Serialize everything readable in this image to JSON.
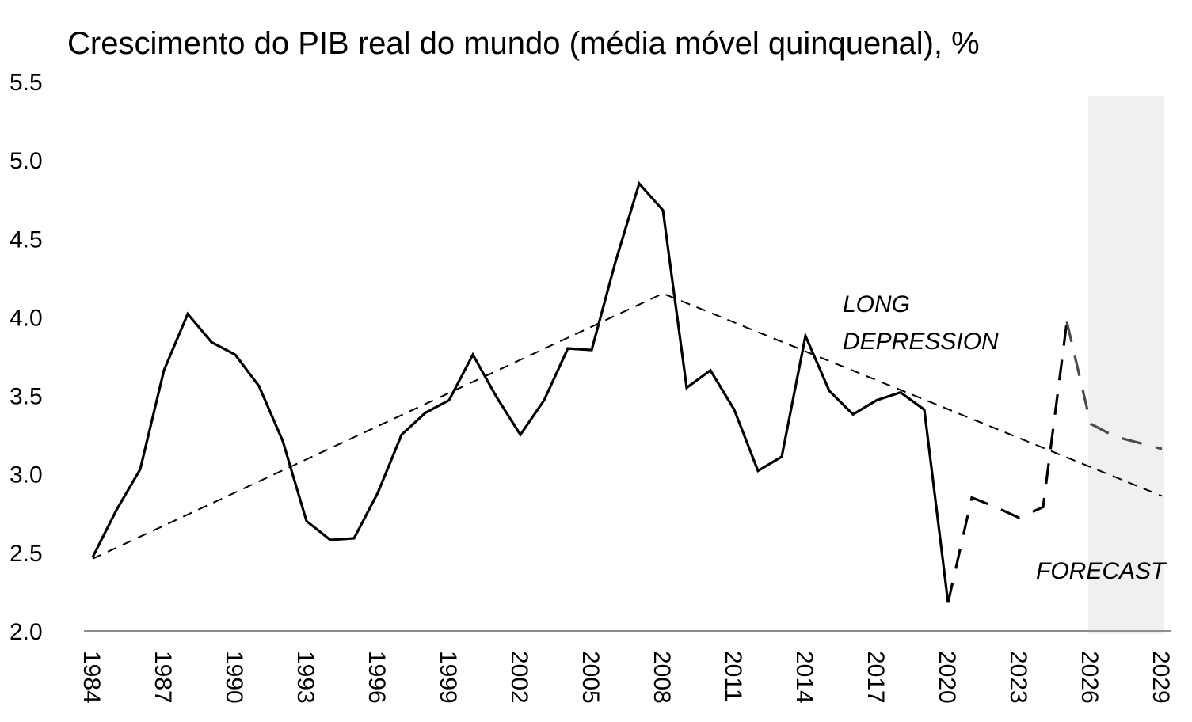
{
  "chart_data": {
    "type": "line",
    "title": "Crescimento do PIB real do mundo (média móvel quinquenal), %",
    "xlabel": "",
    "ylabel": "",
    "ylim": [
      2.0,
      5.5
    ],
    "xlim": [
      1984,
      2029
    ],
    "y_ticks": [
      "2.0",
      "2.5",
      "3.0",
      "3.5",
      "4.0",
      "4.5",
      "5.0",
      "5.5"
    ],
    "x_ticks": [
      "1984",
      "1987",
      "1990",
      "1993",
      "1996",
      "1999",
      "2002",
      "2005",
      "2008",
      "2011",
      "2014",
      "2017",
      "2020",
      "2023",
      "2026",
      "2029"
    ],
    "grid": false,
    "legend": "none",
    "forecast_region": [
      2025.9,
      2029.1
    ],
    "series": [
      {
        "style": "solid",
        "x": [
          1984,
          1985,
          1986,
          1987,
          1988,
          1989,
          1990,
          1991,
          1992,
          1993,
          1994,
          1995,
          1996,
          1997,
          1998,
          1999,
          2000,
          2001,
          2002,
          2003,
          2004,
          2005,
          2006,
          2007,
          2008,
          2009,
          2010,
          2011,
          2012,
          2013,
          2014,
          2015,
          2016,
          2017,
          2018,
          2019,
          2020
        ],
        "values": [
          2.47,
          2.77,
          3.03,
          3.66,
          4.02,
          3.84,
          3.76,
          3.56,
          3.21,
          2.7,
          2.58,
          2.59,
          2.88,
          3.25,
          3.39,
          3.47,
          3.76,
          3.49,
          3.25,
          3.47,
          3.8,
          3.79,
          4.35,
          4.85,
          4.68,
          3.55,
          3.66,
          3.41,
          3.02,
          3.11,
          3.88,
          3.53,
          3.38,
          3.47,
          3.52,
          3.41,
          2.18
        ]
      },
      {
        "style": "dashed",
        "x": [
          2020,
          2021,
          2022,
          2023,
          2024,
          2025
        ],
        "values": [
          2.18,
          2.85,
          2.79,
          2.72,
          2.79,
          3.97
        ]
      },
      {
        "style": "dashed-grey",
        "x": [
          2025,
          2026,
          2027,
          2028,
          2029
        ],
        "values": [
          3.97,
          3.32,
          3.24,
          3.2,
          3.16
        ]
      },
      {
        "style": "trend",
        "x": [
          1984,
          2008,
          2029
        ],
        "values": [
          2.46,
          4.15,
          2.86
        ]
      }
    ],
    "annotations": {
      "long_depression": [
        "LONG",
        "DEPRESSION"
      ],
      "forecast": "FORECAST"
    },
    "colors": {
      "line": "#000000",
      "forecast_line": "#4a4a4a",
      "forecast_band": "#f0f0f0",
      "axis": "#8c8c8c"
    }
  }
}
